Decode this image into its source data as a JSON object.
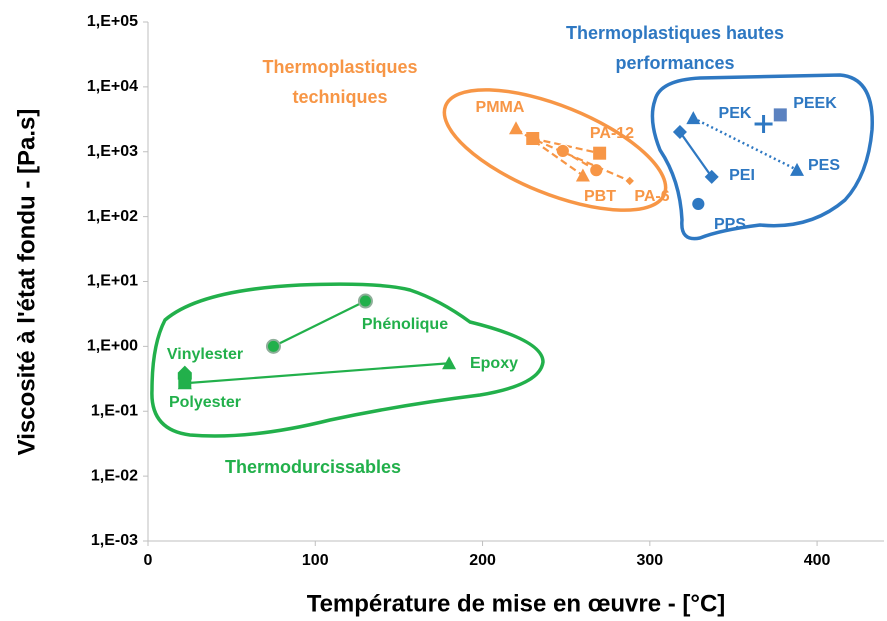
{
  "chart_data": {
    "type": "scatter",
    "x_label": "Température de mise en œuvre - [°C]",
    "y_label": "Viscosité à l'état fondu - [Pa.s]",
    "xlim": [
      0,
      440
    ],
    "xticks": [
      0,
      100,
      200,
      300,
      400
    ],
    "ylim": [
      0.001,
      100000
    ],
    "y_scale": "log",
    "yticks": [
      {
        "value": 0.001,
        "label": "1,E-03"
      },
      {
        "value": 0.01,
        "label": "1,E-02"
      },
      {
        "value": 0.1,
        "label": "1,E-01"
      },
      {
        "value": 1,
        "label": "1,E+00"
      },
      {
        "value": 10,
        "label": "1,E+01"
      },
      {
        "value": 100,
        "label": "1,E+02"
      },
      {
        "value": 1000,
        "label": "1,E+03"
      },
      {
        "value": 10000,
        "label": "1,E+04"
      },
      {
        "value": 100000,
        "label": "1,E+05"
      }
    ],
    "grid": false,
    "series": [
      {
        "name": "Vinylester",
        "color": "#22b04b",
        "marker": "home",
        "line": "none",
        "x": [
          22
        ],
        "values": [
          0.38
        ]
      },
      {
        "name": "Polyester",
        "color": "#22b04b",
        "marker": "square",
        "line": "none",
        "x": [
          22
        ],
        "values": [
          0.28
        ]
      },
      {
        "name": "Phénolique",
        "color": "#22b04b",
        "marker": "circle",
        "line": "solid",
        "x": [
          75,
          130
        ],
        "values": [
          1,
          5
        ]
      },
      {
        "name": "Epoxy",
        "color": "#22b04b",
        "marker": "triangle",
        "line": "solid",
        "x": [
          22,
          180
        ],
        "values": [
          0.27,
          0.55
        ]
      },
      {
        "name": "PMMA",
        "color": "#f79646",
        "marker": "triangle",
        "line": "dashed",
        "x": [
          220,
          260
        ],
        "values": [
          2300,
          430
        ]
      },
      {
        "name": "PA-12",
        "color": "#f79646",
        "marker": "square",
        "line": "dashed",
        "x": [
          230,
          270
        ],
        "values": [
          1600,
          950
        ]
      },
      {
        "name": "PBT",
        "color": "#f79646",
        "marker": "circle",
        "line": "dashed",
        "x": [
          248,
          268
        ],
        "values": [
          1030,
          520
        ]
      },
      {
        "name": "PA-6",
        "color": "#f79646",
        "marker": "diamond",
        "line": "dashed",
        "x": [
          232,
          288
        ],
        "values": [
          1500,
          355
        ]
      },
      {
        "name": "PEK",
        "color": "#2e78c2",
        "marker": "cross",
        "line": "none",
        "x": [
          368
        ],
        "values": [
          2680
        ]
      },
      {
        "name": "PEEK",
        "color": "#5b82c0",
        "marker": "square",
        "line": "none",
        "x": [
          378
        ],
        "values": [
          3700
        ]
      },
      {
        "name": "PEI",
        "color": "#2e78c2",
        "marker": "diamond",
        "line": "solid",
        "x": [
          318,
          337
        ],
        "values": [
          2020,
          410
        ]
      },
      {
        "name": "PES",
        "color": "#2e78c2",
        "marker": "triangle",
        "line": "dotted",
        "x": [
          326,
          388
        ],
        "values": [
          3300,
          525
        ]
      },
      {
        "name": "PPS",
        "color": "#2e78c2",
        "marker": "circle",
        "line": "none",
        "x": [
          329
        ],
        "values": [
          157
        ]
      }
    ],
    "annotations": [
      {
        "lines": [
          "Thermodurcissables"
        ],
        "color": "#22b04b"
      },
      {
        "lines": [
          "Thermoplastiques",
          "techniques"
        ],
        "color": "#f79646"
      },
      {
        "lines": [
          "Thermoplastiques hautes",
          "performances"
        ],
        "color": "#2e78c2"
      }
    ]
  }
}
